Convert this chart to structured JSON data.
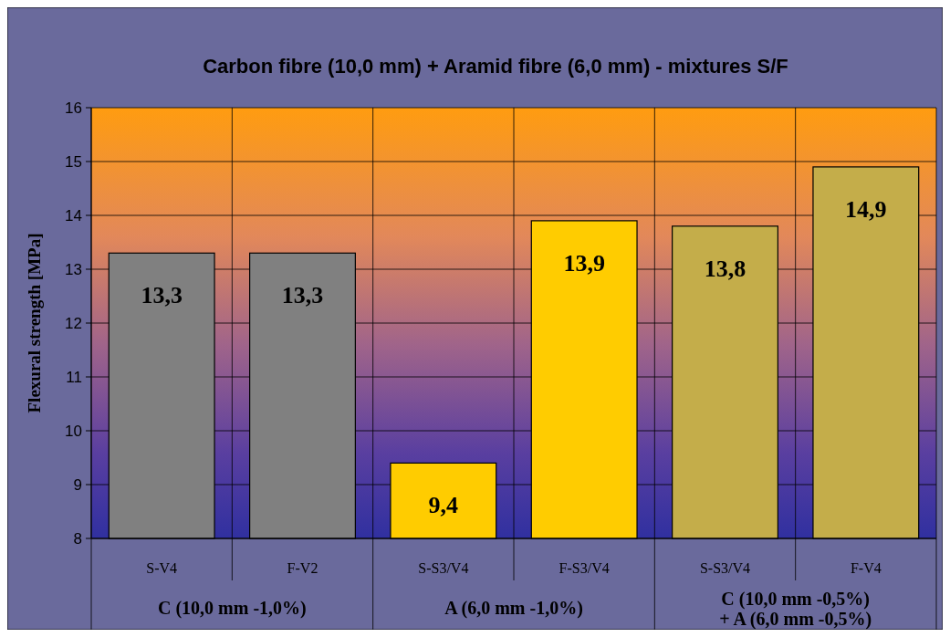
{
  "chart_data": {
    "type": "bar",
    "title": "Carbon fibre (10,0 mm) + Aramid fibre (6,0 mm) - mixtures S/F",
    "ylabel": "Flexural strength [MPa]",
    "categories": [
      "S-V4",
      "F-V2",
      "S-S3/V4",
      "F-S3/V4",
      "S-S3/V4",
      "F-V4"
    ],
    "values": [
      13.3,
      13.3,
      9.4,
      13.9,
      13.8,
      14.9
    ],
    "colors": [
      "#808080",
      "#808080",
      "#ffcc00",
      "#ffcc00",
      "#c4ad4a",
      "#c4ad4a"
    ],
    "ylim": [
      8,
      16
    ],
    "yticks": [
      8,
      9,
      10,
      11,
      12,
      13,
      14,
      15,
      16
    ],
    "grid": true,
    "value_labels": [
      "13,3",
      "13,3",
      "9,4",
      "13,9",
      "13,8",
      "14,9"
    ],
    "annotations": [
      "C (10,0 mm -1,0%)",
      "A (6,0 mm -1,0%)",
      "C (10,0 mm -0,5%)\n+ A (6,0 mm -0,5%)"
    ]
  }
}
